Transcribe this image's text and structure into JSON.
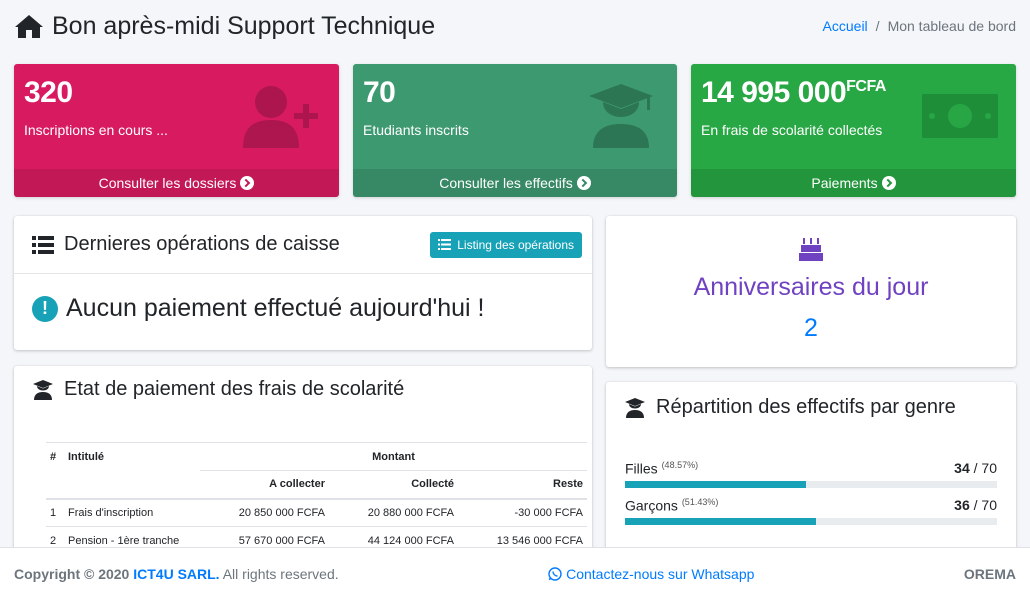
{
  "header": {
    "title": "Bon après-midi Support Technique",
    "breadcrumb": {
      "home": "Accueil",
      "current": "Mon tableau de bord"
    }
  },
  "stats": [
    {
      "value": "320",
      "label": "Inscriptions en cours ...",
      "link": "Consulter les dossiers",
      "color": "#d81b60"
    },
    {
      "value": "70",
      "label": "Etudiants inscrits",
      "link": "Consulter les effectifs",
      "color": "#3d9970"
    },
    {
      "value": "14 995 000",
      "unit": "FCFA",
      "label": "En frais de scolarité collectés",
      "link": "Paiements",
      "color": "#28a745"
    }
  ],
  "operations": {
    "title": "Dernieres opérations de caisse",
    "button": "Listing des opérations",
    "message": "Aucun paiement effectué aujourd'hui !"
  },
  "birthdays": {
    "title": "Anniversaires du jour",
    "count": "2"
  },
  "payments": {
    "title": "Etat de paiement des frais de scolarité",
    "headers": {
      "num": "#",
      "label": "Intitulé",
      "amount": "Montant",
      "to_collect": "A collecter",
      "collected": "Collecté",
      "rest": "Reste"
    },
    "rows": [
      {
        "num": "1",
        "label": "Frais d'inscription",
        "to_collect": "20 850 000 FCFA",
        "collected": "20 880 000 FCFA",
        "rest": "-30 000 FCFA"
      },
      {
        "num": "2",
        "label": "Pension - 1ère tranche",
        "to_collect": "57 670 000 FCFA",
        "collected": "44 124 000 FCFA",
        "rest": "13 546 000 FCFA"
      }
    ]
  },
  "gender": {
    "title": "Répartition des effectifs par genre",
    "items": [
      {
        "label": "Filles",
        "pct": "(48.57%)",
        "count": "34",
        "total": "/ 70",
        "fraction": 0.4857
      },
      {
        "label": "Garçons",
        "pct": "(51.43%)",
        "count": "36",
        "total": "/ 70",
        "fraction": 0.5143
      }
    ]
  },
  "footer": {
    "copyright": "Copyright © 2020",
    "company": "ICT4U SARL.",
    "rights": "All rights reserved.",
    "whatsapp": "Contactez-nous sur Whatsapp",
    "brand": "OREMA"
  }
}
